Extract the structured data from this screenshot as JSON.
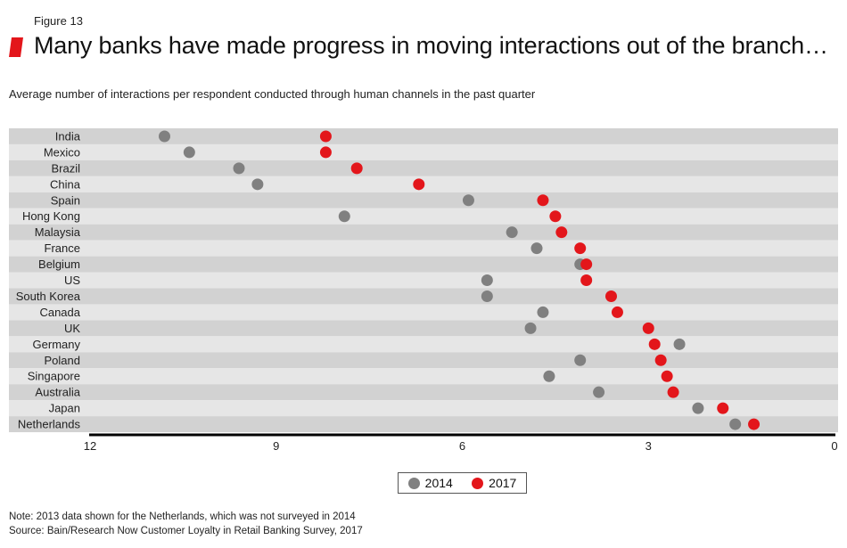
{
  "figure_label": "Figure 13",
  "title": "Many banks have made progress in moving interactions out of the branch…",
  "subtitle": "Average number of interactions per respondent conducted through human channels in the past quarter",
  "colors": {
    "accent": "#e3161b",
    "series_2014": "#808080",
    "series_2017": "#e3161b",
    "band_dark": "#d2d2d2",
    "band_light": "#e6e6e6"
  },
  "chart_data": {
    "type": "scatter",
    "orientation": "dot-plot",
    "x_reversed": true,
    "xlim": [
      12,
      0
    ],
    "xticks": [
      12,
      9,
      6,
      3,
      0
    ],
    "categories": [
      "India",
      "Mexico",
      "Brazil",
      "China",
      "Spain",
      "Hong Kong",
      "Malaysia",
      "France",
      "Belgium",
      "US",
      "South Korea",
      "Canada",
      "UK",
      "Germany",
      "Poland",
      "Singapore",
      "Australia",
      "Japan",
      "Netherlands"
    ],
    "series": [
      {
        "name": "2014",
        "values": [
          10.8,
          10.4,
          9.6,
          9.3,
          5.9,
          7.9,
          5.2,
          4.8,
          4.1,
          5.6,
          5.6,
          4.7,
          4.9,
          2.5,
          4.1,
          4.6,
          3.8,
          2.2,
          1.6
        ]
      },
      {
        "name": "2017",
        "values": [
          8.2,
          8.2,
          7.7,
          6.7,
          4.7,
          4.5,
          4.4,
          4.1,
          4.0,
          4.0,
          3.6,
          3.5,
          3.0,
          2.9,
          2.8,
          2.7,
          2.6,
          1.8,
          1.3
        ]
      }
    ],
    "title": "Many banks have made progress in moving interactions out of the branch…",
    "xlabel": "",
    "ylabel": ""
  },
  "notes": {
    "note": "Note: 2013 data shown for the Netherlands, which was not surveyed in 2014",
    "source": "Source: Bain/Research Now Customer Loyalty in Retail Banking Survey, 2017"
  }
}
